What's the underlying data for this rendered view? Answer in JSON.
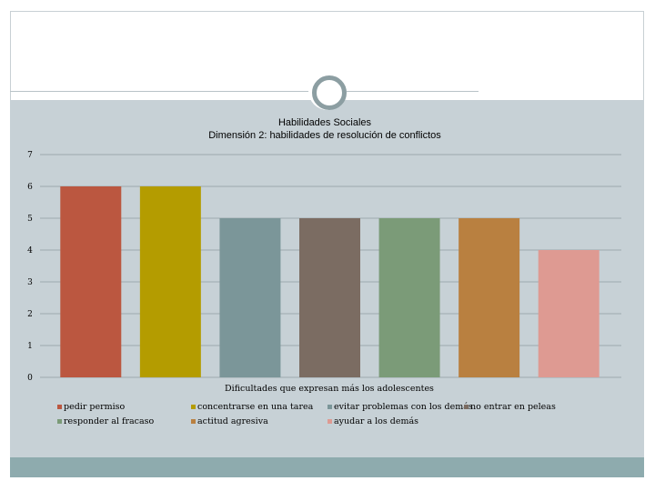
{
  "chart_data": {
    "type": "bar",
    "title": "Habilidades Sociales",
    "subtitle": "Dimensión 2: habilidades de resolución de conflictos",
    "xlabel": "Dificultades que expresan más los adolescentes",
    "ylabel": "",
    "ylim": [
      0,
      7
    ],
    "yticks": [
      0,
      1,
      2,
      3,
      4,
      5,
      6,
      7
    ],
    "grid": true,
    "legend_position": "bottom",
    "series": [
      {
        "name": "pedir permiso",
        "values": [
          6
        ],
        "color": "#bb5740"
      },
      {
        "name": "concentrarse en una tarea",
        "values": [
          6
        ],
        "color": "#b49c00"
      },
      {
        "name": "evitar problemas con los demás",
        "values": [
          5
        ],
        "color": "#7b9699"
      },
      {
        "name": "no entrar en peleas",
        "values": [
          5
        ],
        "color": "#7b6c62"
      },
      {
        "name": "responder al fracaso",
        "values": [
          5
        ],
        "color": "#7b9b78"
      },
      {
        "name": "actitud agresiva",
        "values": [
          5
        ],
        "color": "#b98040"
      },
      {
        "name": "ayudar a los demás",
        "values": [
          4
        ],
        "color": "#de9a92"
      }
    ]
  }
}
